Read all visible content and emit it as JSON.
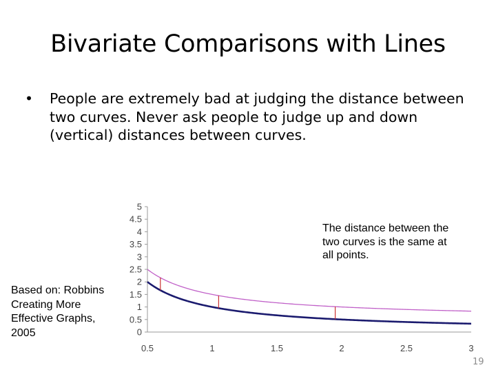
{
  "slide": {
    "title": "Bivariate Comparisons with Lines",
    "bullet_marker": "•",
    "bullet_text": "People are extremely bad at judging the distance between two curves.  Never ask people to judge up and down (vertical) distances between curves.",
    "credit": "Based on: Robbins Creating More Effective Graphs, 2005",
    "page_number": "19"
  },
  "chart_data": {
    "type": "line",
    "title": "",
    "xlabel": "",
    "ylabel": "",
    "xlim": [
      0.5,
      3
    ],
    "ylim": [
      0,
      5
    ],
    "x_ticks": [
      "0.5",
      "1",
      "1.5",
      "2",
      "2.5",
      "3"
    ],
    "y_ticks": [
      "0",
      "0.5",
      "1",
      "1.5",
      "2",
      "2.5",
      "3",
      "3.5",
      "4",
      "4.5",
      "5"
    ],
    "series": [
      {
        "function": "1/x",
        "color": "#1a1a6e"
      },
      {
        "function": "1/x + 0.5",
        "color": "#c060c8"
      }
    ],
    "distance_markers_x": [
      0.6,
      1.05,
      1.95
    ],
    "marker_color": "#cc3333",
    "annotation": "The distance between the two curves is the same at all points."
  }
}
